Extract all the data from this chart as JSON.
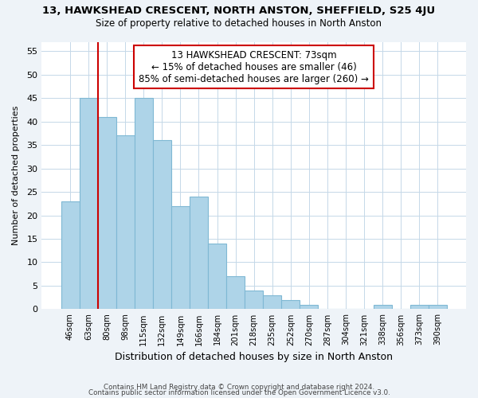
{
  "title": "13, HAWKSHEAD CRESCENT, NORTH ANSTON, SHEFFIELD, S25 4JU",
  "subtitle": "Size of property relative to detached houses in North Anston",
  "xlabel": "Distribution of detached houses by size in North Anston",
  "ylabel": "Number of detached properties",
  "bar_color": "#aed4e8",
  "bar_edge_color": "#7fb8d4",
  "bin_labels": [
    "46sqm",
    "63sqm",
    "80sqm",
    "98sqm",
    "115sqm",
    "132sqm",
    "149sqm",
    "166sqm",
    "184sqm",
    "201sqm",
    "218sqm",
    "235sqm",
    "252sqm",
    "270sqm",
    "287sqm",
    "304sqm",
    "321sqm",
    "338sqm",
    "356sqm",
    "373sqm",
    "390sqm"
  ],
  "bar_values": [
    23,
    45,
    41,
    37,
    45,
    36,
    22,
    24,
    14,
    7,
    4,
    3,
    2,
    1,
    0,
    0,
    0,
    1,
    0,
    1,
    1
  ],
  "ylim": [
    0,
    57
  ],
  "yticks": [
    0,
    5,
    10,
    15,
    20,
    25,
    30,
    35,
    40,
    45,
    50,
    55
  ],
  "annotation_title": "13 HAWKSHEAD CRESCENT: 73sqm",
  "annotation_line1": "← 15% of detached houses are smaller (46)",
  "annotation_line2": "85% of semi-detached houses are larger (260) →",
  "vline_color": "#cc0000",
  "annotation_box_edge": "#cc0000",
  "footer1": "Contains HM Land Registry data © Crown copyright and database right 2024.",
  "footer2": "Contains public sector information licensed under the Open Government Licence v3.0.",
  "background_color": "#eef3f8",
  "plot_background": "#ffffff",
  "grid_color": "#c5d8e8"
}
